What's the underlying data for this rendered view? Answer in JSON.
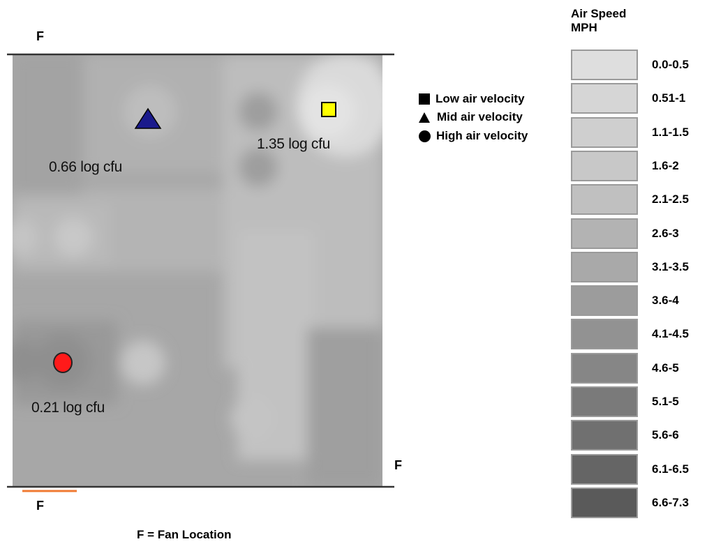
{
  "fan_labels": {
    "top_left": "F",
    "right": "F",
    "bottom_left": "F"
  },
  "fan_caption": "F = Fan Location",
  "markers": [
    {
      "name": "low-velocity-square",
      "color": "#ffff00",
      "label": "1.35 log cfu"
    },
    {
      "name": "mid-velocity-triangle",
      "color": "#1a1a8c",
      "label": "0.66 log cfu"
    },
    {
      "name": "high-velocity-circle",
      "color": "#ff1a1a",
      "label": "0.21 log cfu"
    }
  ],
  "legend": {
    "items": [
      {
        "symbol": "square",
        "label": "Low air velocity"
      },
      {
        "symbol": "triangle",
        "label": "Mid air velocity"
      },
      {
        "symbol": "circle",
        "label": "High air velocity"
      }
    ]
  },
  "scale": {
    "title_line1": "Air Speed",
    "title_line2": "MPH",
    "bins": [
      {
        "label": "0.0-0.5",
        "color": "#dedede"
      },
      {
        "label": "0.51-1",
        "color": "#d6d6d6"
      },
      {
        "label": "1.1-1.5",
        "color": "#cfcfcf"
      },
      {
        "label": "1.6-2",
        "color": "#c8c8c8"
      },
      {
        "label": "2.1-2.5",
        "color": "#c0c0c0"
      },
      {
        "label": "2.6-3",
        "color": "#b3b3b3"
      },
      {
        "label": "3.1-3.5",
        "color": "#a9a9a9"
      },
      {
        "label": "3.6-4",
        "color": "#9c9c9c"
      },
      {
        "label": "4.1-4.5",
        "color": "#929292"
      },
      {
        "label": "4.6-5",
        "color": "#868686"
      },
      {
        "label": "5.1-5",
        "color": "#7a7a7a"
      },
      {
        "label": "5.6-6",
        "color": "#707070"
      },
      {
        "label": "6.1-6.5",
        "color": "#656565"
      },
      {
        "label": "6.6-7.3",
        "color": "#5a5a5a"
      }
    ]
  }
}
